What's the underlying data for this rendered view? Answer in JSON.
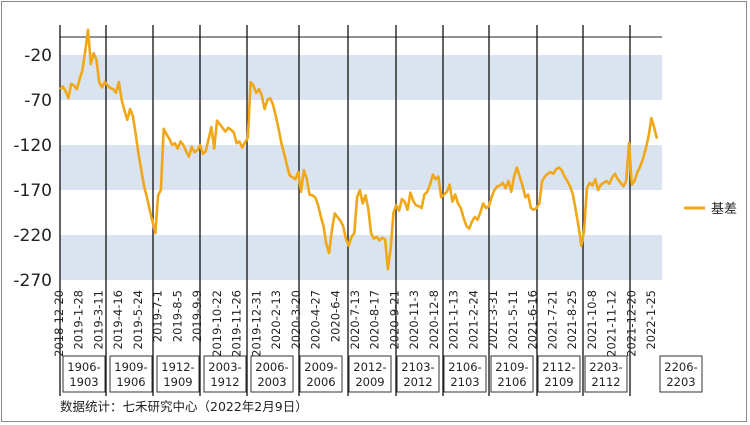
{
  "chart_data": {
    "type": "line",
    "title": "",
    "xlabel": "",
    "ylabel": "",
    "ylim": [
      -270,
      0
    ],
    "yticks": [
      -20,
      -70,
      -120,
      -170,
      -220,
      -270
    ],
    "grid": "horizontal bands",
    "legend_position": "right",
    "series": [
      {
        "name": "基差",
        "color": "#f0a718",
        "values": [
          [
            0,
            -58
          ],
          [
            3,
            -55
          ],
          [
            6,
            -60
          ],
          [
            9,
            -68
          ],
          [
            12,
            -52
          ],
          [
            15,
            -54
          ],
          [
            18,
            -58
          ],
          [
            21,
            -47
          ],
          [
            24,
            -37
          ],
          [
            27,
            -16
          ],
          [
            30,
            8
          ],
          [
            33,
            -30
          ],
          [
            36,
            -18
          ],
          [
            39,
            -25
          ],
          [
            42,
            -50
          ],
          [
            45,
            -56
          ],
          [
            48,
            -50
          ],
          [
            51,
            -54
          ],
          [
            54,
            -57
          ],
          [
            57,
            -58
          ],
          [
            60,
            -62
          ],
          [
            63,
            -50
          ],
          [
            66,
            -70
          ],
          [
            69,
            -82
          ],
          [
            72,
            -92
          ],
          [
            75,
            -80
          ],
          [
            78,
            -88
          ],
          [
            81,
            -108
          ],
          [
            84,
            -130
          ],
          [
            87,
            -148
          ],
          [
            90,
            -166
          ],
          [
            93,
            -178
          ],
          [
            96,
            -192
          ],
          [
            99,
            -205
          ],
          [
            102,
            -218
          ],
          [
            105,
            -176
          ],
          [
            108,
            -170
          ],
          [
            111,
            -102
          ],
          [
            114,
            -108
          ],
          [
            117,
            -113
          ],
          [
            120,
            -120
          ],
          [
            123,
            -118
          ],
          [
            126,
            -124
          ],
          [
            129,
            -116
          ],
          [
            132,
            -120
          ],
          [
            135,
            -127
          ],
          [
            138,
            -133
          ],
          [
            141,
            -122
          ],
          [
            144,
            -128
          ],
          [
            147,
            -126
          ],
          [
            150,
            -120
          ],
          [
            153,
            -130
          ],
          [
            156,
            -127
          ],
          [
            159,
            -114
          ],
          [
            162,
            -100
          ],
          [
            165,
            -124
          ],
          [
            168,
            -93
          ],
          [
            171,
            -97
          ],
          [
            174,
            -101
          ],
          [
            177,
            -105
          ],
          [
            180,
            -101
          ],
          [
            183,
            -103
          ],
          [
            186,
            -106
          ],
          [
            189,
            -118
          ],
          [
            192,
            -116
          ],
          [
            195,
            -123
          ],
          [
            198,
            -117
          ],
          [
            201,
            -112
          ],
          [
            204,
            -50
          ],
          [
            207,
            -54
          ],
          [
            210,
            -62
          ],
          [
            213,
            -58
          ],
          [
            216,
            -65
          ],
          [
            219,
            -80
          ],
          [
            222,
            -70
          ],
          [
            225,
            -68
          ],
          [
            228,
            -75
          ],
          [
            231,
            -88
          ],
          [
            234,
            -102
          ],
          [
            237,
            -118
          ],
          [
            240,
            -130
          ],
          [
            243,
            -143
          ],
          [
            246,
            -154
          ],
          [
            249,
            -156
          ],
          [
            252,
            -158
          ],
          [
            255,
            -150
          ],
          [
            258,
            -172
          ],
          [
            261,
            -148
          ],
          [
            264,
            -157
          ],
          [
            267,
            -175
          ],
          [
            270,
            -176
          ],
          [
            273,
            -178
          ],
          [
            276,
            -186
          ],
          [
            279,
            -199
          ],
          [
            282,
            -210
          ],
          [
            285,
            -230
          ],
          [
            288,
            -240
          ],
          [
            291,
            -215
          ],
          [
            294,
            -196
          ],
          [
            297,
            -200
          ],
          [
            300,
            -204
          ],
          [
            303,
            -210
          ],
          [
            306,
            -224
          ],
          [
            309,
            -232
          ],
          [
            312,
            -222
          ],
          [
            315,
            -218
          ],
          [
            318,
            -178
          ],
          [
            321,
            -170
          ],
          [
            324,
            -185
          ],
          [
            327,
            -176
          ],
          [
            330,
            -191
          ],
          [
            333,
            -218
          ],
          [
            336,
            -224
          ],
          [
            339,
            -222
          ],
          [
            342,
            -226
          ],
          [
            345,
            -223
          ],
          [
            348,
            -225
          ],
          [
            351,
            -258
          ],
          [
            354,
            -235
          ],
          [
            357,
            -195
          ],
          [
            360,
            -187
          ],
          [
            363,
            -193
          ],
          [
            366,
            -180
          ],
          [
            369,
            -183
          ],
          [
            372,
            -192
          ],
          [
            375,
            -173
          ],
          [
            378,
            -182
          ],
          [
            381,
            -187
          ],
          [
            384,
            -188
          ],
          [
            387,
            -190
          ],
          [
            390,
            -175
          ],
          [
            393,
            -172
          ],
          [
            396,
            -164
          ],
          [
            399,
            -153
          ],
          [
            402,
            -158
          ],
          [
            405,
            -155
          ],
          [
            408,
            -178
          ],
          [
            411,
            -175
          ],
          [
            414,
            -172
          ],
          [
            417,
            -164
          ],
          [
            420,
            -183
          ],
          [
            423,
            -175
          ],
          [
            426,
            -185
          ],
          [
            429,
            -190
          ],
          [
            432,
            -201
          ],
          [
            435,
            -210
          ],
          [
            438,
            -213
          ],
          [
            441,
            -205
          ],
          [
            444,
            -200
          ],
          [
            447,
            -203
          ],
          [
            450,
            -195
          ],
          [
            453,
            -185
          ],
          [
            456,
            -190
          ],
          [
            459,
            -188
          ],
          [
            462,
            -178
          ],
          [
            465,
            -170
          ],
          [
            468,
            -166
          ],
          [
            471,
            -165
          ],
          [
            474,
            -162
          ],
          [
            477,
            -168
          ],
          [
            480,
            -160
          ],
          [
            483,
            -172
          ],
          [
            486,
            -155
          ],
          [
            489,
            -145
          ],
          [
            492,
            -155
          ],
          [
            495,
            -165
          ],
          [
            498,
            -178
          ],
          [
            501,
            -175
          ],
          [
            504,
            -190
          ],
          [
            507,
            -192
          ],
          [
            510,
            -190
          ],
          [
            513,
            -185
          ],
          [
            516,
            -160
          ],
          [
            519,
            -155
          ],
          [
            522,
            -152
          ],
          [
            525,
            -150
          ],
          [
            528,
            -152
          ],
          [
            531,
            -147
          ],
          [
            534,
            -145
          ],
          [
            537,
            -148
          ],
          [
            540,
            -155
          ],
          [
            543,
            -160
          ],
          [
            546,
            -166
          ],
          [
            549,
            -175
          ],
          [
            552,
            -192
          ],
          [
            555,
            -210
          ],
          [
            558,
            -232
          ],
          [
            561,
            -215
          ],
          [
            564,
            -168
          ],
          [
            567,
            -162
          ],
          [
            570,
            -165
          ],
          [
            573,
            -158
          ],
          [
            576,
            -170
          ],
          [
            579,
            -164
          ],
          [
            582,
            -162
          ],
          [
            585,
            -160
          ],
          [
            588,
            -163
          ],
          [
            591,
            -156
          ],
          [
            594,
            -152
          ],
          [
            597,
            -158
          ],
          [
            600,
            -162
          ],
          [
            603,
            -166
          ],
          [
            606,
            -160
          ],
          [
            609,
            -118
          ],
          [
            612,
            -164
          ],
          [
            615,
            -160
          ],
          [
            618,
            -150
          ],
          [
            621,
            -144
          ],
          [
            624,
            -135
          ],
          [
            627,
            -124
          ],
          [
            630,
            -110
          ],
          [
            633,
            -90
          ],
          [
            636,
            -101
          ],
          [
            639,
            -113
          ]
        ]
      }
    ],
    "x_tick_labels": [
      "2018-12-20",
      "2019-1-28",
      "2019-3-11",
      "2019-4-16",
      "2019-5-24",
      "2019-7-1",
      "2019-8-5",
      "2019-9-9",
      "2019-10-22",
      "2019-11-26",
      "2019-12-31",
      "2020-2-13",
      "2020-3-20",
      "2020-4-27",
      "2020-6-4",
      "2020-7-13",
      "2020-8-17",
      "2020-9-21",
      "2020-11-3",
      "2020-12-8",
      "2021-1-13",
      "2021-2-24",
      "2021-3-31",
      "2021-5-11",
      "2021-6-16",
      "2021-7-21",
      "2021-8-25",
      "2021-10-8",
      "2021-11-12",
      "2021-12-20",
      "2022-1-25"
    ],
    "contract_boxes": [
      [
        "1906-",
        "1903"
      ],
      [
        "1909-",
        "1906"
      ],
      [
        "1912-",
        "1909"
      ],
      [
        "2003-",
        "1912"
      ],
      [
        "2006-",
        "2003"
      ],
      [
        "2009-",
        "2006"
      ],
      [
        "2012-",
        "2009"
      ],
      [
        "2103-",
        "2012"
      ],
      [
        "2106-",
        "2103"
      ],
      [
        "2109-",
        "2106"
      ],
      [
        "2112-",
        "2109"
      ],
      [
        "2203-",
        "2112"
      ],
      [
        "2206-",
        "2203"
      ]
    ]
  },
  "source_text": "数据统计：七禾研究中心（2022年2月9日）"
}
